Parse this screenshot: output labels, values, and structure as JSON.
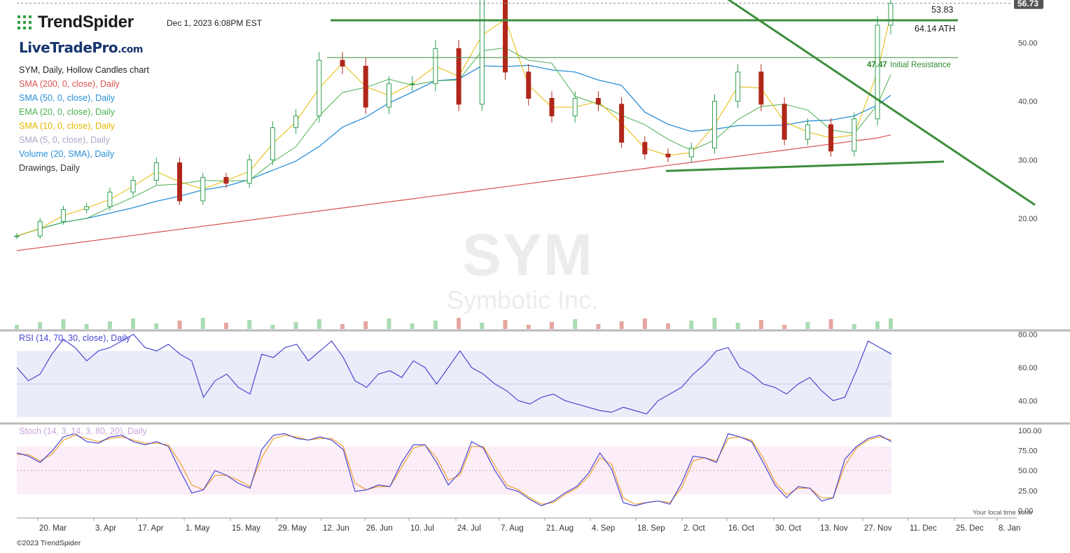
{
  "header": {
    "brand_name": "TrendSpider",
    "datetime": "Dec 1, 2023 6:08PM EST",
    "watermark_site": "LiveTradePro",
    "watermark_tld": ".com",
    "chart_description": "SYM, Daily, Hollow Candles chart",
    "ath_label": "64.14 ATH"
  },
  "indicators": [
    {
      "label": "SMA (200, 0, close), Daily",
      "color": "#d9534f"
    },
    {
      "label": "SMA (50, 0, close), Daily",
      "color": "#2a8fd6"
    },
    {
      "label": "EMA (20, 0, close), Daily",
      "color": "#4caf50"
    },
    {
      "label": "SMA (10, 0, close), Daily",
      "color": "#e6b800"
    },
    {
      "label": "SMA (5, 0, close), Daily",
      "color": "#a9a9c8"
    },
    {
      "label": "Volume (20, SMA), Daily",
      "color": "#2a8fd6"
    },
    {
      "label": "Drawings, Daily",
      "color": "#333333"
    }
  ],
  "rsi_title": "RSI (14, 70, 30, close), Daily",
  "stoch_title": "Stoch (14, 3, 14, 3, 80, 20), Daily",
  "symbol_watermark": "SYM",
  "company_watermark": "Symbotic Inc.",
  "local_time_note": "Your local time zone",
  "copyright": "©2023 TrendSpider",
  "chart_data": {
    "type": "line",
    "title": "SYM, Daily, Hollow Candles chart",
    "x_labels": [
      "20. Mar",
      "3. Apr",
      "17. Apr",
      "1. May",
      "15. May",
      "29. May",
      "12. Jun",
      "26. Jun",
      "10. Jul",
      "24. Jul",
      "7. Aug",
      "21. Aug",
      "4. Sep",
      "18. Sep",
      "2. Oct",
      "16. Oct",
      "30. Oct",
      "13. Nov",
      "27. Nov",
      "11. Dec",
      "25. Dec",
      "8. Jan"
    ],
    "price_axis": {
      "ticks": [
        "20.00",
        "30.00",
        "40.00",
        "50.00"
      ],
      "ylim": [
        14,
        65
      ]
    },
    "last_price": "56.73",
    "price_levels": [
      {
        "label": "53.83",
        "value": 53.83
      },
      {
        "label": "47.47",
        "value": 47.47,
        "note": "Initial Resistance"
      }
    ],
    "close_series": [
      {
        "date": "2023-03-13",
        "close": 17.0
      },
      {
        "date": "2023-03-20",
        "close": 19.5
      },
      {
        "date": "2023-03-27",
        "close": 21.5
      },
      {
        "date": "2023-04-03",
        "close": 22.0
      },
      {
        "date": "2023-04-10",
        "close": 24.5
      },
      {
        "date": "2023-04-17",
        "close": 26.5
      },
      {
        "date": "2023-04-24",
        "close": 29.5
      },
      {
        "date": "2023-05-01",
        "close": 23.0
      },
      {
        "date": "2023-05-08",
        "close": 27.0
      },
      {
        "date": "2023-05-15",
        "close": 26.0
      },
      {
        "date": "2023-05-22",
        "close": 30.0
      },
      {
        "date": "2023-05-29",
        "close": 35.5
      },
      {
        "date": "2023-06-05",
        "close": 37.5
      },
      {
        "date": "2023-06-12",
        "close": 47.0
      },
      {
        "date": "2023-06-19",
        "close": 46.0
      },
      {
        "date": "2023-06-26",
        "close": 39.0
      },
      {
        "date": "2023-07-03",
        "close": 43.0
      },
      {
        "date": "2023-07-10",
        "close": 43.0
      },
      {
        "date": "2023-07-17",
        "close": 49.0
      },
      {
        "date": "2023-07-24",
        "close": 39.5
      },
      {
        "date": "2023-07-31",
        "close": 63.0
      },
      {
        "date": "2023-08-07",
        "close": 45.0
      },
      {
        "date": "2023-08-14",
        "close": 40.5
      },
      {
        "date": "2023-08-21",
        "close": 37.5
      },
      {
        "date": "2023-08-28",
        "close": 40.5
      },
      {
        "date": "2023-09-04",
        "close": 39.5
      },
      {
        "date": "2023-09-11",
        "close": 33.0
      },
      {
        "date": "2023-09-18",
        "close": 31.0
      },
      {
        "date": "2023-09-25",
        "close": 30.5
      },
      {
        "date": "2023-10-02",
        "close": 32.0
      },
      {
        "date": "2023-10-09",
        "close": 40.0
      },
      {
        "date": "2023-10-16",
        "close": 45.0
      },
      {
        "date": "2023-10-23",
        "close": 39.5
      },
      {
        "date": "2023-10-30",
        "close": 33.5
      },
      {
        "date": "2023-11-06",
        "close": 36.0
      },
      {
        "date": "2023-11-13",
        "close": 31.5
      },
      {
        "date": "2023-11-20",
        "close": 37.0
      },
      {
        "date": "2023-11-27",
        "close": 53.0
      },
      {
        "date": "2023-12-01",
        "close": 56.73
      }
    ],
    "rsi": {
      "ticks": [
        "40.00",
        "60.00",
        "80.00"
      ],
      "bands": [
        30,
        70
      ],
      "ylim": [
        25,
        82
      ],
      "values": [
        60,
        52,
        56,
        68,
        77,
        72,
        64,
        70,
        72,
        76,
        80,
        72,
        70,
        74,
        68,
        64,
        42,
        52,
        56,
        48,
        44,
        68,
        66,
        72,
        74,
        64,
        70,
        76,
        66,
        52,
        48,
        56,
        58,
        54,
        64,
        60,
        50,
        60,
        70,
        60,
        56,
        50,
        46,
        40,
        38,
        42,
        44,
        40,
        38,
        36,
        34,
        33,
        36,
        34,
        32,
        40,
        44,
        48,
        56,
        62,
        70,
        72,
        60,
        56,
        50,
        48,
        44,
        50,
        54,
        46,
        40,
        42,
        58,
        76,
        72,
        68
      ],
      "color": "#4a47d0"
    },
    "stoch": {
      "ticks": [
        "0.00",
        "25.00",
        "50.00",
        "75.00",
        "100.00"
      ],
      "bands": [
        20,
        80
      ],
      "ylim": [
        -2,
        104
      ],
      "k": [
        72,
        68,
        60,
        74,
        92,
        96,
        86,
        84,
        92,
        94,
        86,
        82,
        86,
        80,
        50,
        22,
        26,
        50,
        44,
        34,
        28,
        76,
        94,
        96,
        90,
        88,
        92,
        88,
        76,
        24,
        26,
        32,
        30,
        60,
        82,
        82,
        60,
        32,
        48,
        86,
        78,
        50,
        28,
        24,
        14,
        6,
        12,
        22,
        30,
        46,
        72,
        52,
        10,
        6,
        10,
        12,
        8,
        34,
        68,
        66,
        60,
        96,
        92,
        86,
        60,
        32,
        16,
        30,
        28,
        12,
        16,
        64,
        80,
        90,
        94,
        86
      ],
      "d": [
        70,
        70,
        62,
        70,
        88,
        94,
        90,
        86,
        90,
        92,
        88,
        84,
        84,
        82,
        60,
        32,
        26,
        44,
        44,
        38,
        30,
        66,
        90,
        94,
        92,
        88,
        90,
        90,
        80,
        34,
        26,
        30,
        30,
        54,
        78,
        82,
        66,
        38,
        44,
        80,
        80,
        56,
        32,
        26,
        16,
        8,
        10,
        20,
        28,
        42,
        66,
        58,
        16,
        8,
        10,
        12,
        10,
        28,
        62,
        66,
        62,
        90,
        92,
        88,
        66,
        36,
        20,
        28,
        28,
        16,
        16,
        56,
        78,
        88,
        92,
        88
      ],
      "k_color": "#4a47d0",
      "d_color": "#f0a030"
    }
  }
}
